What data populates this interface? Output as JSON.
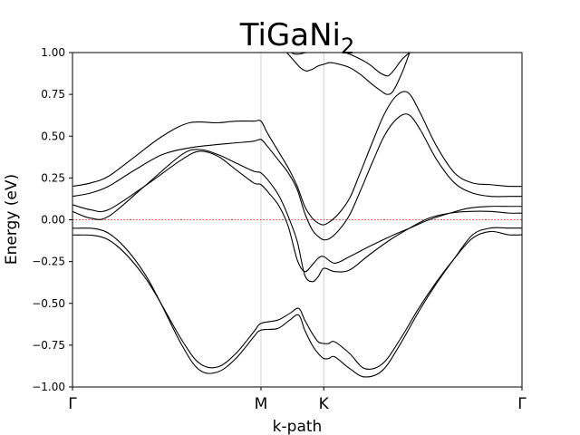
{
  "chart_data": {
    "type": "line",
    "title": "TiGaNi",
    "title_subscript": "2",
    "xlabel": "k-path",
    "ylabel": "Energy (eV)",
    "ylim": [
      -1.0,
      1.0
    ],
    "xlim": [
      0,
      3
    ],
    "yticks": [
      -1.0,
      -0.75,
      -0.5,
      -0.25,
      0.0,
      0.25,
      0.5,
      0.75,
      1.0
    ],
    "ytick_labels": [
      "−1.00",
      "−0.75",
      "−0.50",
      "−0.25",
      "0.00",
      "0.25",
      "0.50",
      "0.75",
      "1.00"
    ],
    "kpoints": [
      {
        "label": "Γ",
        "x": 0
      },
      {
        "label": "M",
        "x": 1.258
      },
      {
        "label": "K",
        "x": 1.677
      },
      {
        "label": "Γ",
        "x": 3
      }
    ],
    "fermi_level": 0.0,
    "fermi_color": "#d62728",
    "line_color": "#000000",
    "grid_color": "#d0d0d0",
    "series": [
      {
        "x": [
          0,
          0.24,
          0.48,
          0.73,
          0.85,
          0.97,
          1.09,
          1.21,
          1.258,
          1.37,
          1.45,
          1.51,
          1.55,
          1.6,
          1.64,
          1.677,
          1.71,
          1.75,
          1.85,
          1.95,
          2.07,
          2.19,
          2.31,
          2.43,
          2.55,
          2.67,
          2.79,
          2.91,
          3
        ],
        "y": [
          -0.09,
          -0.12,
          -0.34,
          -0.72,
          -0.86,
          -0.88,
          -0.8,
          -0.67,
          -0.62,
          -0.6,
          -0.56,
          -0.53,
          -0.6,
          -0.68,
          -0.73,
          -0.74,
          -0.74,
          -0.73,
          -0.8,
          -0.89,
          -0.86,
          -0.71,
          -0.53,
          -0.37,
          -0.23,
          -0.11,
          -0.07,
          -0.09,
          -0.09
        ]
      },
      {
        "x": [
          0,
          0.24,
          0.48,
          0.73,
          0.85,
          0.97,
          1.09,
          1.21,
          1.258,
          1.37,
          1.45,
          1.51,
          1.55,
          1.6,
          1.64,
          1.677,
          1.71,
          1.75,
          1.85,
          1.95,
          2.07,
          2.19,
          2.31,
          2.43,
          2.55,
          2.67,
          2.79,
          2.91,
          3
        ],
        "y": [
          -0.05,
          -0.08,
          -0.32,
          -0.75,
          -0.9,
          -0.91,
          -0.83,
          -0.7,
          -0.66,
          -0.65,
          -0.6,
          -0.57,
          -0.66,
          -0.75,
          -0.8,
          -0.83,
          -0.83,
          -0.82,
          -0.89,
          -0.94,
          -0.9,
          -0.74,
          -0.55,
          -0.38,
          -0.23,
          -0.09,
          -0.05,
          -0.05,
          -0.05
        ]
      },
      {
        "x": [
          0,
          0.12,
          0.24,
          0.48,
          0.73,
          0.85,
          0.97,
          1.09,
          1.21,
          1.258,
          1.32,
          1.38,
          1.44,
          1.5,
          1.55,
          1.6,
          1.64,
          1.677,
          1.75,
          1.85,
          1.98,
          2.12,
          2.25,
          2.38,
          2.52,
          2.65,
          2.79,
          2.91,
          3
        ],
        "y": [
          0.09,
          0.06,
          0.06,
          0.2,
          0.36,
          0.41,
          0.38,
          0.3,
          0.22,
          0.21,
          0.15,
          0.08,
          -0.04,
          -0.24,
          -0.31,
          -0.27,
          -0.23,
          -0.22,
          -0.26,
          -0.22,
          -0.16,
          -0.1,
          -0.05,
          0.0,
          0.04,
          0.07,
          0.08,
          0.08,
          0.08
        ]
      },
      {
        "x": [
          0,
          0.12,
          0.24,
          0.48,
          0.73,
          0.85,
          0.97,
          1.09,
          1.21,
          1.258,
          1.32,
          1.38,
          1.44,
          1.5,
          1.55,
          1.6,
          1.64,
          1.677,
          1.75,
          1.85,
          1.98,
          2.12,
          2.25,
          2.38,
          2.52,
          2.65,
          2.79,
          2.91,
          3
        ],
        "y": [
          0.05,
          0.01,
          0.02,
          0.2,
          0.39,
          0.42,
          0.39,
          0.34,
          0.29,
          0.28,
          0.22,
          0.14,
          0.02,
          -0.13,
          -0.33,
          -0.37,
          -0.34,
          -0.29,
          -0.31,
          -0.3,
          -0.21,
          -0.12,
          -0.05,
          0.01,
          0.04,
          0.05,
          0.05,
          0.04,
          0.04
        ]
      },
      {
        "x": [
          0,
          0.12,
          0.24,
          0.42,
          0.6,
          0.78,
          0.97,
          1.09,
          1.21,
          1.258,
          1.3,
          1.38,
          1.44,
          1.5,
          1.55,
          1.6,
          1.64,
          1.677,
          1.72,
          1.78,
          1.85,
          1.92,
          2.0,
          2.08,
          2.16,
          2.24,
          2.32,
          2.43,
          2.55,
          2.67,
          2.79,
          2.91,
          3
        ],
        "y": [
          0.14,
          0.16,
          0.2,
          0.3,
          0.39,
          0.43,
          0.45,
          0.46,
          0.47,
          0.48,
          0.44,
          0.35,
          0.28,
          0.18,
          0.04,
          -0.06,
          -0.1,
          -0.12,
          -0.11,
          -0.06,
          0.03,
          0.17,
          0.34,
          0.5,
          0.6,
          0.63,
          0.54,
          0.36,
          0.22,
          0.16,
          0.14,
          0.14,
          0.14
        ]
      },
      {
        "x": [
          0,
          0.12,
          0.24,
          0.42,
          0.6,
          0.78,
          0.97,
          1.09,
          1.21,
          1.258,
          1.3,
          1.38,
          1.44,
          1.5,
          1.55,
          1.6,
          1.64,
          1.677,
          1.72,
          1.78,
          1.85,
          1.92,
          2.0,
          2.08,
          2.16,
          2.24,
          2.32,
          2.43,
          2.55,
          2.67,
          2.79,
          2.91,
          3
        ],
        "y": [
          0.2,
          0.22,
          0.26,
          0.38,
          0.5,
          0.58,
          0.58,
          0.59,
          0.59,
          0.59,
          0.52,
          0.4,
          0.31,
          0.2,
          0.08,
          0.01,
          -0.02,
          -0.03,
          -0.01,
          0.04,
          0.13,
          0.28,
          0.46,
          0.63,
          0.74,
          0.76,
          0.64,
          0.44,
          0.28,
          0.22,
          0.21,
          0.2,
          0.2
        ]
      },
      {
        "x": [
          1.43,
          1.47,
          1.52,
          1.56,
          1.6,
          1.64,
          1.677,
          1.72,
          1.78,
          1.85,
          1.92,
          2.0,
          2.06,
          2.1,
          2.14,
          2.2,
          2.25
        ],
        "y": [
          1.0,
          0.96,
          0.91,
          0.89,
          0.9,
          0.92,
          0.93,
          0.94,
          0.93,
          0.91,
          0.87,
          0.81,
          0.77,
          0.75,
          0.77,
          0.88,
          1.0
        ]
      },
      {
        "x": [
          1.43,
          1.46,
          1.5,
          1.56,
          1.62,
          1.677,
          1.74,
          1.82,
          1.9,
          1.98,
          2.05,
          2.1,
          2.12,
          2.15,
          2.2,
          2.25
        ],
        "y": [
          1.04,
          1.0,
          0.99,
          1.0,
          1.01,
          1.02,
          1.01,
          1.0,
          0.97,
          0.93,
          0.88,
          0.86,
          0.87,
          0.9,
          0.96,
          1.0
        ]
      }
    ]
  }
}
